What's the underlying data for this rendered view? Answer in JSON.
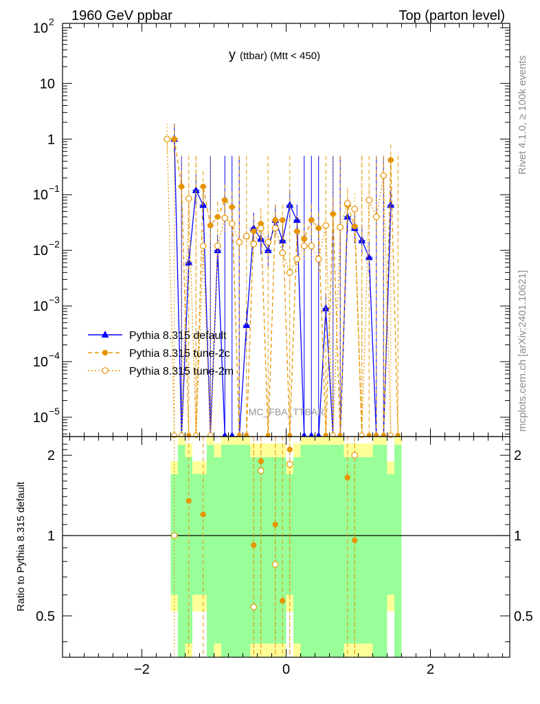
{
  "header": {
    "left_title": "1960 GeV ppbar",
    "right_title": "Top (parton level)"
  },
  "side_labels": {
    "rivet": "Rivet 4.1.0, ≥ 100k events",
    "mcplots": "mcplots.cern.ch [arXiv:2401.10621]"
  },
  "chart_data": {
    "type": "line",
    "title": "y (ttbar) (Mtt < 450)",
    "title_main": "y",
    "title_sub": "(ttbar) (Mtt < 450)",
    "watermark": "MC_FBA_TTBAR",
    "xlim": [
      -3.1,
      3.1
    ],
    "x_ticks": [
      -2,
      0,
      2
    ],
    "x_tick_labels": [
      "−2",
      "0",
      "2"
    ],
    "main_panel": {
      "yscale": "log",
      "ylim": [
        4.5e-06,
        120
      ],
      "y_tick_labels": [
        {
          "value": 100,
          "base": "10",
          "exp": "2"
        },
        {
          "value": 10,
          "base": "10",
          "exp": ""
        },
        {
          "value": 1,
          "base": "1",
          "exp": ""
        },
        {
          "value": 0.1,
          "base": "10",
          "exp": "−1"
        },
        {
          "value": 0.01,
          "base": "10",
          "exp": "−2"
        },
        {
          "value": 0.001,
          "base": "10",
          "exp": "−3"
        },
        {
          "value": 0.0001,
          "base": "10",
          "exp": "−4"
        },
        {
          "value": 1e-05,
          "base": "10",
          "exp": "−5"
        }
      ],
      "legend_position": "left",
      "series": [
        {
          "name": "Pythia 8.315 default",
          "color": "#0000ff",
          "marker": "triangle",
          "line": "solid",
          "x": [
            -1.55,
            -1.45,
            -1.35,
            -1.25,
            -1.15,
            -1.05,
            -0.95,
            -0.85,
            -0.75,
            -0.65,
            -0.55,
            -0.45,
            -0.35,
            -0.25,
            -0.15,
            -0.05,
            0.05,
            0.15,
            0.25,
            0.35,
            0.45,
            0.55,
            0.65,
            0.75,
            0.85,
            0.95,
            1.05,
            1.15,
            1.25,
            1.35,
            1.45
          ],
          "y": [
            1.0,
            0,
            0.006,
            0.12,
            0.065,
            0,
            0.01,
            0,
            0,
            0,
            0.00045,
            0.025,
            0.016,
            0.01,
            0.035,
            0.015,
            0.065,
            0.035,
            0,
            0,
            0,
            0.0009,
            0,
            0,
            0.04,
            0.025,
            0.015,
            0.0075,
            0,
            0,
            0.065
          ]
        },
        {
          "name": "Pythia 8.315 tune-2c",
          "color": "#e69500",
          "marker": "circle",
          "line": "dashed",
          "x": [
            -1.55,
            -1.45,
            -1.35,
            -1.25,
            -1.15,
            -1.05,
            -0.95,
            -0.85,
            -0.75,
            -0.65,
            -0.55,
            -0.45,
            -0.35,
            -0.25,
            -0.15,
            -0.05,
            0.05,
            0.15,
            0.25,
            0.35,
            0.45,
            0.55,
            0.65,
            0.75,
            0.85,
            0.95,
            1.05,
            1.15,
            1.25,
            1.35,
            1.45,
            1.55
          ],
          "y": [
            1.0,
            0.14,
            0,
            0,
            0.14,
            0.028,
            0.04,
            0.08,
            0.06,
            0,
            0,
            0.022,
            0.03,
            0,
            0.035,
            0.035,
            0,
            0.022,
            0.016,
            0.035,
            0.025,
            0,
            0.045,
            0,
            0.065,
            0.027,
            0,
            0,
            0,
            0,
            0.42,
            0
          ]
        },
        {
          "name": "Pythia 8.315 tune-2m",
          "color": "#e69500",
          "marker": "open-circle",
          "line": "dotted",
          "x": [
            -1.65,
            -1.55,
            -1.45,
            -1.35,
            -1.25,
            -1.15,
            -1.05,
            -0.95,
            -0.85,
            -0.75,
            -0.65,
            -0.55,
            -0.45,
            -0.35,
            -0.25,
            -0.15,
            -0.05,
            0.05,
            0.15,
            0.25,
            0.35,
            0.45,
            0.55,
            0.65,
            0.75,
            0.85,
            0.95,
            1.05,
            1.15,
            1.25,
            1.35,
            1.45
          ],
          "y": [
            1.0,
            0,
            0,
            0.085,
            0,
            0.012,
            0,
            0.012,
            0.038,
            0.03,
            0.014,
            0.018,
            0.013,
            0.025,
            0.014,
            0.025,
            0.009,
            0.004,
            0.007,
            0.012,
            0.012,
            0.007,
            0.028,
            0,
            0.026,
            0.07,
            0.055,
            0,
            0.08,
            0.04,
            0.22,
            0
          ]
        }
      ]
    },
    "ratio_panel": {
      "ylabel": "Ratio to Pythia 8.315 default",
      "ylim": [
        0.35,
        2.35
      ],
      "yscale": "log",
      "y_tick_labels": [
        {
          "value": 0.5,
          "label": "0.5"
        },
        {
          "value": 1,
          "label": "1"
        },
        {
          "value": 2,
          "label": "2"
        }
      ],
      "band_colors": {
        "inner": "#99ff99",
        "outer": "#ffff99"
      },
      "series": [
        {
          "name": "Pythia 8.315 tune-2c",
          "x": [
            -1.35,
            -1.15,
            -0.45,
            -0.35,
            -0.15,
            -0.05,
            0.05,
            0.85,
            0.95
          ],
          "y": [
            1.35,
            1.2,
            0.92,
            1.9,
            1.1,
            0.57,
            2.1,
            1.65,
            0.96
          ]
        },
        {
          "name": "Pythia 8.315 tune-2m",
          "x": [
            -1.55,
            -0.45,
            -0.35,
            -0.15,
            0.05,
            0.95
          ],
          "y": [
            1.0,
            0.54,
            1.75,
            0.78,
            1.85,
            2.0
          ]
        }
      ]
    }
  }
}
